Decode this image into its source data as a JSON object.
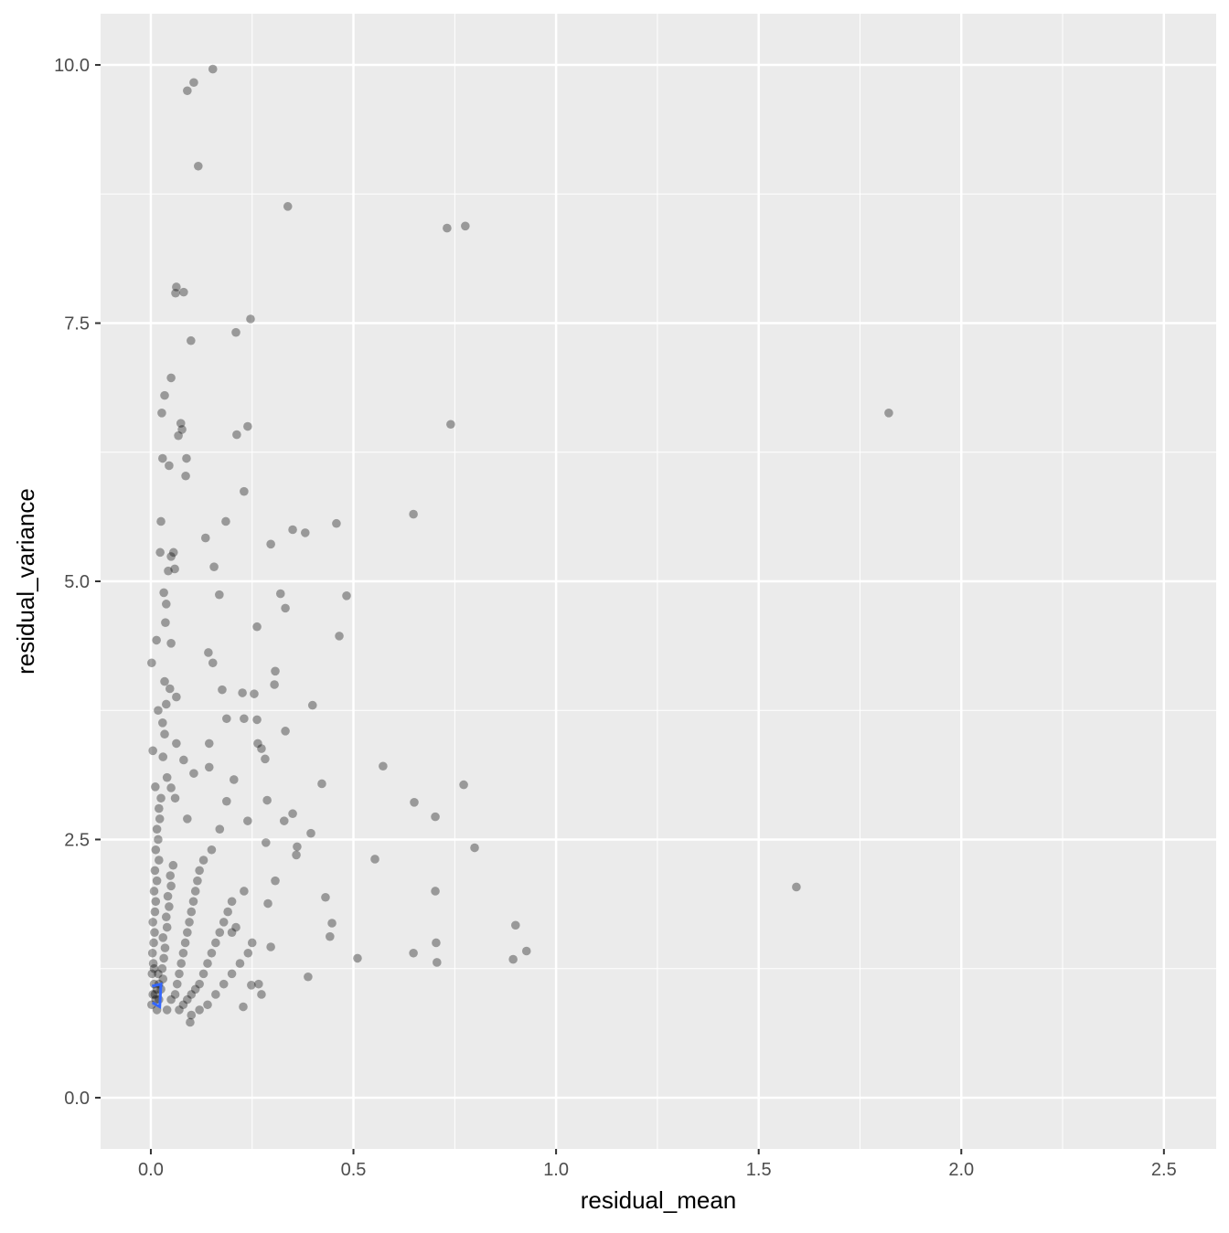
{
  "chart_data": {
    "type": "scatter",
    "x_label": "residual_mean",
    "y_label": "residual_variance",
    "xlim": [
      -0.124,
      2.629
    ],
    "ylim": [
      -0.496,
      10.496
    ],
    "xticks": [
      {
        "value": 0,
        "label": "0.0"
      },
      0.5,
      {
        "value": 1,
        "label": "1.0"
      },
      1.5,
      {
        "value": 2,
        "label": "2.0"
      },
      2.5
    ],
    "yticks": [
      {
        "value": 0,
        "label": "0.0"
      },
      2.5,
      {
        "value": 5,
        "label": "5.0"
      },
      7.5,
      {
        "value": 10,
        "label": "10.0"
      }
    ],
    "grid": true,
    "color": "#000000",
    "opacity": 0.35,
    "x": [
      0.153,
      0.106,
      0.09,
      0.117,
      0.338,
      0.731,
      0.776,
      0.063,
      0.081,
      0.061,
      0.246,
      0.21,
      0.099,
      0.05,
      0.034,
      0.027,
      1.821,
      0.239,
      0.074,
      0.077,
      0.74,
      0.068,
      0.212,
      0.029,
      0.088,
      0.045,
      0.086,
      0.23,
      0.648,
      0.025,
      0.185,
      0.458,
      0.35,
      0.381,
      0.135,
      0.296,
      0.023,
      0.056,
      0.05,
      0.156,
      0.059,
      0.043,
      0.483,
      0.169,
      0.32,
      0.032,
      0.332,
      0.038,
      0.036,
      0.262,
      0.465,
      0.014,
      0.05,
      0.142,
      0.153,
      0.002,
      0.307,
      0.305,
      0.034,
      0.176,
      0.047,
      0.226,
      0.255,
      0.063,
      0.038,
      0.399,
      0.018,
      0.187,
      0.23,
      0.262,
      0.029,
      0.034,
      0.332,
      0.063,
      0.144,
      0.264,
      0.273,
      0.005,
      0.282,
      0.573,
      0.081,
      0.144,
      0.106,
      0.205,
      0.772,
      0.422,
      0.011,
      0.65,
      0.287,
      0.187,
      0.702,
      0.35,
      0.329,
      0.239,
      0.395,
      0.284,
      0.361,
      0.799,
      0.359,
      0.553,
      0.307,
      0.702,
      1.593,
      0.431,
      0.289,
      0.9,
      0.447,
      0.442,
      0.704,
      0.296,
      0.927,
      0.648,
      0.51,
      0.894,
      0.706,
      0.388,
      0.248,
      0.266,
      0.273,
      0.228,
      0.097,
      0.002,
      0.005,
      0.008,
      0.003,
      0.006,
      0.004,
      0.007,
      0.009,
      0.005,
      0.01,
      0.012,
      0.008,
      0.015,
      0.01,
      0.02,
      0.012,
      0.018,
      0.015,
      0.022,
      0.02,
      0.025,
      0.015,
      0.02,
      0.025,
      0.03,
      0.028,
      0.032,
      0.035,
      0.03,
      0.04,
      0.038,
      0.045,
      0.042,
      0.05,
      0.048,
      0.055,
      0.04,
      0.05,
      0.06,
      0.065,
      0.07,
      0.075,
      0.08,
      0.085,
      0.09,
      0.095,
      0.1,
      0.105,
      0.11,
      0.115,
      0.12,
      0.13,
      0.07,
      0.08,
      0.09,
      0.1,
      0.11,
      0.12,
      0.13,
      0.14,
      0.15,
      0.16,
      0.17,
      0.18,
      0.19,
      0.2,
      0.1,
      0.12,
      0.14,
      0.16,
      0.18,
      0.2,
      0.22,
      0.24,
      0.25,
      0.2,
      0.21,
      0.23,
      0.15,
      0.17,
      0.09,
      0.06,
      0.04,
      0.03,
      0.05,
      0.01,
      0.015,
      0.02,
      0.012,
      0.018,
      0.008
    ],
    "y": [
      9.96,
      9.83,
      9.75,
      9.02,
      8.63,
      8.42,
      8.44,
      7.85,
      7.8,
      7.79,
      7.54,
      7.41,
      7.33,
      6.97,
      6.8,
      6.63,
      6.63,
      6.5,
      6.53,
      6.47,
      6.52,
      6.41,
      6.42,
      6.19,
      6.19,
      6.12,
      6.02,
      5.87,
      5.65,
      5.58,
      5.58,
      5.56,
      5.5,
      5.47,
      5.42,
      5.36,
      5.28,
      5.28,
      5.24,
      5.14,
      5.12,
      5.1,
      4.86,
      4.87,
      4.88,
      4.89,
      4.74,
      4.78,
      4.6,
      4.56,
      4.47,
      4.43,
      4.4,
      4.31,
      4.21,
      4.21,
      4.13,
      4,
      4.03,
      3.95,
      3.96,
      3.92,
      3.91,
      3.88,
      3.81,
      3.8,
      3.75,
      3.67,
      3.67,
      3.66,
      3.63,
      3.52,
      3.55,
      3.43,
      3.43,
      3.43,
      3.38,
      3.36,
      3.28,
      3.21,
      3.27,
      3.2,
      3.14,
      3.08,
      3.03,
      3.04,
      3.01,
      2.86,
      2.88,
      2.87,
      2.72,
      2.75,
      2.68,
      2.68,
      2.56,
      2.47,
      2.43,
      2.42,
      2.35,
      2.31,
      2.1,
      2,
      2.04,
      1.94,
      1.88,
      1.67,
      1.69,
      1.56,
      1.5,
      1.46,
      1.42,
      1.4,
      1.35,
      1.34,
      1.31,
      1.17,
      1.09,
      1.1,
      1,
      0.88,
      0.73,
      0.9,
      1,
      1.1,
      1.2,
      1.3,
      1.4,
      1.5,
      1.6,
      1.7,
      1.8,
      1.9,
      2,
      2.1,
      2.2,
      2.3,
      2.4,
      2.5,
      2.6,
      2.7,
      2.8,
      2.9,
      0.85,
      0.95,
      1.05,
      1.15,
      1.25,
      1.35,
      1.45,
      1.55,
      1.65,
      1.75,
      1.85,
      1.95,
      2.05,
      2.15,
      2.25,
      0.85,
      0.95,
      1,
      1.1,
      1.2,
      1.3,
      1.4,
      1.5,
      1.6,
      1.7,
      1.8,
      1.9,
      2,
      2.1,
      2.2,
      2.3,
      0.85,
      0.9,
      0.95,
      1,
      1.05,
      1.1,
      1.2,
      1.3,
      1.4,
      1.5,
      1.6,
      1.7,
      1.8,
      1.9,
      0.8,
      0.85,
      0.9,
      1,
      1.1,
      1.2,
      1.3,
      1.4,
      1.5,
      1.6,
      1.65,
      2,
      2.4,
      2.6,
      2.7,
      2.9,
      3.1,
      3.3,
      3,
      1,
      1.05,
      1.1,
      0.95,
      1.2,
      1.25
    ],
    "trend": {
      "x": [
        0.003,
        0.025,
        0.022,
        0.004
      ],
      "y": [
        1.08,
        1.1,
        0.88,
        0.92
      ],
      "color": "#3366FF"
    }
  }
}
